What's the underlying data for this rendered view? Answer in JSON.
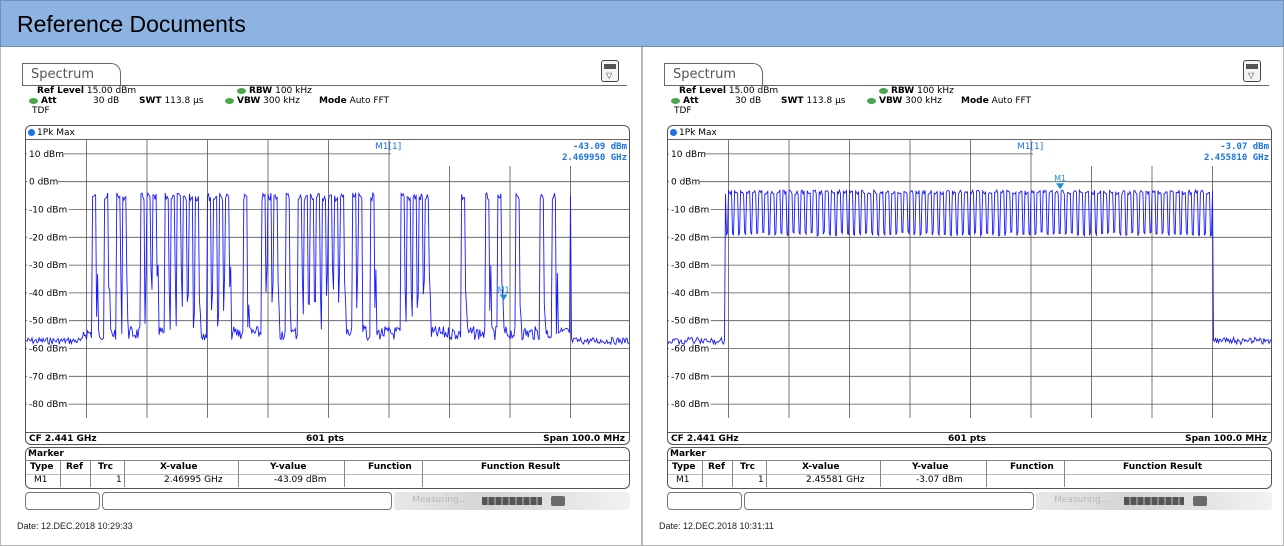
{
  "page": {
    "title": "Reference Documents"
  },
  "panels": [
    {
      "tab_label": "Spectrum",
      "ref_level_label": "Ref Level",
      "ref_level": "15.00 dBm",
      "att_label": "Att",
      "att_value": "30 dB",
      "swt_label": "SWT",
      "swt_value": "113.8 µs",
      "rbw_label": "RBW",
      "rbw_value": "100 kHz",
      "vbw_label": "VBW",
      "vbw_value": "300 kHz",
      "mode_label": "Mode",
      "mode_value": "Auto FFT",
      "tdf": "TDF",
      "trace_label": "1Pk Max",
      "marker_readout_label": "M1[1]",
      "marker_readout_level": "-43.09 dBm",
      "marker_readout_freq": "2.469950 GHz",
      "y_ticks": [
        "10 dBm",
        "0 dBm",
        "-10 dBm",
        "-20 dBm",
        "-30 dBm",
        "-40 dBm",
        "-50 dBm",
        "-60 dBm",
        "-70 dBm",
        "-80 dBm"
      ],
      "center_freq": "CF 2.441 GHz",
      "points": "601 pts",
      "span": "Span 100.0 MHz",
      "marker_table": {
        "title": "Marker",
        "headers": [
          "Type",
          "Ref",
          "Trc",
          "X-value",
          "Y-value",
          "Function",
          "Function Result"
        ],
        "row": {
          "type": "M1",
          "ref": "",
          "trc": "1",
          "x": "2.46995 GHz",
          "y": "-43.09 dBm",
          "function": "",
          "result": ""
        }
      },
      "status_text": "Measuring...",
      "date": "Date: 12.DEC.2018  10:29:33",
      "pattern": "hopping",
      "marker": {
        "freq_ghz": 2.46995,
        "level_dbm": -43.09
      }
    },
    {
      "tab_label": "Spectrum",
      "ref_level_label": "Ref Level",
      "ref_level": "15.00 dBm",
      "att_label": "Att",
      "att_value": "30 dB",
      "swt_label": "SWT",
      "swt_value": "113.8 µs",
      "rbw_label": "RBW",
      "rbw_value": "100 kHz",
      "vbw_label": "VBW",
      "vbw_value": "300 kHz",
      "mode_label": "Mode",
      "mode_value": "Auto FFT",
      "tdf": "TDF",
      "trace_label": "1Pk Max",
      "marker_readout_label": "M1[1]",
      "marker_readout_level": "-3.07 dBm",
      "marker_readout_freq": "2.455810 GHz",
      "y_ticks": [
        "10 dBm",
        "0 dBm",
        "-10 dBm",
        "-20 dBm",
        "-30 dBm",
        "-40 dBm",
        "-50 dBm",
        "-60 dBm",
        "-70 dBm",
        "-80 dBm"
      ],
      "center_freq": "CF 2.441 GHz",
      "points": "601 pts",
      "span": "Span 100.0 MHz",
      "marker_table": {
        "title": "Marker",
        "headers": [
          "Type",
          "Ref",
          "Trc",
          "X-value",
          "Y-value",
          "Function",
          "Function Result"
        ],
        "row": {
          "type": "M1",
          "ref": "",
          "trc": "1",
          "x": "2.45581 GHz",
          "y": "-3.07 dBm",
          "function": "",
          "result": ""
        }
      },
      "status_text": "Measuring...",
      "date": "Date: 12.DEC.2018  10:31:11",
      "pattern": "dense",
      "marker": {
        "freq_ghz": 2.45581,
        "level_dbm": -3.07
      }
    }
  ],
  "colors": {
    "header_bg": "#8db3e2",
    "trace": "#1a1aff",
    "marker": "#1a8fd6",
    "readout": "#1a73e8",
    "grid": "#555555"
  }
}
